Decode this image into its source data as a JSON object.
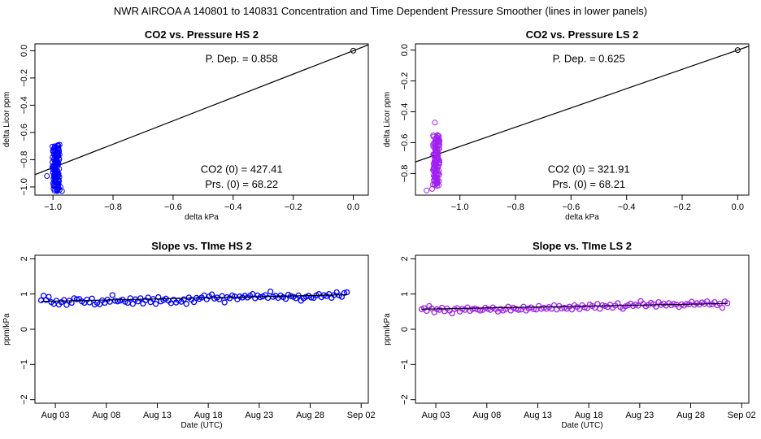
{
  "suptitle": "NWR   AIRCOA A   140801 to 140831   Concentration and Time Dependent Pressure Smoother (lines in lower panels)",
  "colors": {
    "hs": "#0000ff",
    "ls": "#a020f0",
    "line": "#000000"
  },
  "chart_data": [
    {
      "id": "p1",
      "type": "scatter",
      "title": "CO2 vs. Pressure HS 2",
      "xlabel": "delta kPa",
      "ylabel": "delta Licor ppm",
      "xlim": [
        -1.06,
        0.05
      ],
      "ylim": [
        -1.06,
        0.05
      ],
      "xticks": [
        -1.0,
        -0.8,
        -0.6,
        -0.4,
        -0.2,
        0.0
      ],
      "xtick_labels": [
        "−1.0",
        "−0.8",
        "−0.6",
        "−0.4",
        "−0.2",
        "0.0"
      ],
      "yticks": [
        0.0,
        -0.2,
        -0.4,
        -0.6,
        -0.8,
        -1.0
      ],
      "ytick_labels": [
        "0.0",
        "−0.2",
        "−0.4",
        "−0.6",
        "−0.8",
        "−1.0"
      ],
      "annotations": [
        "P. Dep. =  0.858",
        "CO2 (0) =  427.41",
        "Prs. (0) =  68.22"
      ],
      "fit_line": {
        "slope": 0.858,
        "intercept": 0.0
      },
      "cluster": {
        "x_center": -0.99,
        "x_spread": 0.012,
        "y_min": -1.03,
        "y_max": -0.69,
        "count": 120,
        "outliers": [
          [
            -1.02,
            -0.92
          ],
          [
            -0.975,
            -1.0
          ],
          [
            -0.97,
            -1.03
          ]
        ]
      },
      "origin_point": [
        0.0,
        0.0
      ]
    },
    {
      "id": "p2",
      "type": "scatter",
      "title": "CO2 vs. Pressure LS 2",
      "xlabel": "delta kPa",
      "ylabel": "delta Licor ppm",
      "xlim": [
        -1.16,
        0.04
      ],
      "ylim": [
        -0.94,
        0.04
      ],
      "xticks": [
        -1.0,
        -0.8,
        -0.6,
        -0.4,
        -0.2,
        0.0
      ],
      "xtick_labels": [
        "−1.0",
        "−0.8",
        "−0.6",
        "−0.4",
        "−0.2",
        "0.0"
      ],
      "yticks": [
        0.0,
        -0.2,
        -0.4,
        -0.6,
        -0.8
      ],
      "ytick_labels": [
        "0.0",
        "−0.2",
        "−0.4",
        "−0.6",
        "−0.8"
      ],
      "annotations": [
        "P. Dep. =  0.625",
        "CO2 (0) =  321.91",
        "Prs. (0) =  68.21"
      ],
      "fit_line": {
        "slope": 0.625,
        "intercept": 0.0
      },
      "cluster": {
        "x_center": -1.085,
        "x_spread": 0.012,
        "y_min": -0.88,
        "y_max": -0.55,
        "count": 120,
        "outliers": [
          [
            -1.12,
            -0.91
          ],
          [
            -1.09,
            -0.47
          ],
          [
            -1.1,
            -0.9
          ]
        ]
      },
      "origin_point": [
        0.0,
        0.0
      ]
    },
    {
      "id": "p3",
      "type": "scatter",
      "title": "Slope vs. TIme HS 2",
      "xlabel": "Date (UTC)",
      "ylabel": "ppm/kPa",
      "xlim": [
        0.5,
        33.2
      ],
      "ylim": [
        -2.1,
        2.1
      ],
      "xticks": [
        2.5,
        7.5,
        12.5,
        17.5,
        22.5,
        27.5,
        32.5
      ],
      "xtick_labels": [
        "Aug 03",
        "Aug 08",
        "Aug 13",
        "Aug 18",
        "Aug 23",
        "Aug 28",
        "Sep 02"
      ],
      "yticks": [
        -2,
        -1,
        0,
        1,
        2
      ],
      "ytick_labels": [
        "−2",
        "−1",
        "0",
        "1",
        "2"
      ],
      "x": [
        1.1,
        1.35,
        1.6,
        1.85,
        2.1,
        2.35,
        2.6,
        2.85,
        3.1,
        3.35,
        3.6,
        3.85,
        4.1,
        4.35,
        4.6,
        4.85,
        5.1,
        5.35,
        5.6,
        5.85,
        6.1,
        6.35,
        6.6,
        6.85,
        7.1,
        7.35,
        7.6,
        7.85,
        8.1,
        8.35,
        8.6,
        8.85,
        9.1,
        9.35,
        9.6,
        9.85,
        10.1,
        10.35,
        10.6,
        10.85,
        11.1,
        11.35,
        11.6,
        11.85,
        12.1,
        12.35,
        12.6,
        12.85,
        13.1,
        13.35,
        13.6,
        13.85,
        14.1,
        14.35,
        14.6,
        14.85,
        15.1,
        15.35,
        15.6,
        15.85,
        16.1,
        16.35,
        16.6,
        16.85,
        17.1,
        17.35,
        17.6,
        17.85,
        18.1,
        18.35,
        18.6,
        18.85,
        19.1,
        19.35,
        19.6,
        19.85,
        20.1,
        20.35,
        20.6,
        20.85,
        21.1,
        21.35,
        21.6,
        21.85,
        22.1,
        22.35,
        22.6,
        22.85,
        23.1,
        23.35,
        23.6,
        23.85,
        24.1,
        24.35,
        24.6,
        24.85,
        25.1,
        25.35,
        25.6,
        25.85,
        26.1,
        26.35,
        26.6,
        26.85,
        27.1,
        27.35,
        27.6,
        27.85,
        28.1,
        28.35,
        28.6,
        28.85,
        29.1,
        29.35,
        29.6,
        29.85,
        30.1,
        30.35,
        30.6,
        30.85,
        31.1
      ],
      "y": [
        0.82,
        0.95,
        0.83,
        0.92,
        0.77,
        0.72,
        0.81,
        0.7,
        0.77,
        0.83,
        0.69,
        0.81,
        0.75,
        0.88,
        0.85,
        0.86,
        0.79,
        0.75,
        0.84,
        0.76,
        0.87,
        0.7,
        0.75,
        0.71,
        0.82,
        0.75,
        0.84,
        0.78,
        0.97,
        0.81,
        0.79,
        0.81,
        0.84,
        0.78,
        0.75,
        0.88,
        0.72,
        0.85,
        0.79,
        0.88,
        0.73,
        0.82,
        0.9,
        0.77,
        0.86,
        0.72,
        0.91,
        0.79,
        0.83,
        0.87,
        0.81,
        0.74,
        0.84,
        0.76,
        0.82,
        0.78,
        0.85,
        0.72,
        0.9,
        0.84,
        0.77,
        0.89,
        0.86,
        0.9,
        0.96,
        0.85,
        0.93,
        0.99,
        0.87,
        0.9,
        0.85,
        0.94,
        0.76,
        0.91,
        0.88,
        0.96,
        0.93,
        0.85,
        0.93,
        0.9,
        0.95,
        0.9,
        0.95,
        1.0,
        0.88,
        0.96,
        0.91,
        0.93,
        0.97,
        0.89,
        1.07,
        0.92,
        0.95,
        0.89,
        0.96,
        0.91,
        0.86,
        0.98,
        0.94,
        0.92,
        0.88,
        0.96,
        0.81,
        0.88,
        0.92,
        0.95,
        0.9,
        0.89,
        0.96,
        1.0,
        0.91,
        0.97,
        0.94,
        1.0,
        0.89,
        0.97,
        1.05,
        0.96,
        0.92,
        1.03,
        1.05
      ],
      "smooth_line": {
        "x": [
          1.1,
          31.1
        ],
        "y": [
          0.79,
          0.98
        ]
      }
    },
    {
      "id": "p4",
      "type": "scatter",
      "title": "Slope vs. TIme LS 2",
      "xlabel": "Date (UTC)",
      "ylabel": "ppm/kPa",
      "xlim": [
        0.5,
        33.2
      ],
      "ylim": [
        -2.1,
        2.1
      ],
      "xticks": [
        2.5,
        7.5,
        12.5,
        17.5,
        22.5,
        27.5,
        32.5
      ],
      "xtick_labels": [
        "Aug 03",
        "Aug 08",
        "Aug 13",
        "Aug 18",
        "Aug 23",
        "Aug 28",
        "Sep 02"
      ],
      "yticks": [
        -2,
        -1,
        0,
        1,
        2
      ],
      "ytick_labels": [
        "−2",
        "−1",
        "0",
        "1",
        "2"
      ],
      "x": [
        1.1,
        1.35,
        1.6,
        1.85,
        2.1,
        2.35,
        2.6,
        2.85,
        3.1,
        3.35,
        3.6,
        3.85,
        4.1,
        4.35,
        4.6,
        4.85,
        5.1,
        5.35,
        5.6,
        5.85,
        6.1,
        6.35,
        6.6,
        6.85,
        7.1,
        7.35,
        7.6,
        7.85,
        8.1,
        8.35,
        8.6,
        8.85,
        9.1,
        9.35,
        9.6,
        9.85,
        10.1,
        10.35,
        10.6,
        10.85,
        11.1,
        11.35,
        11.6,
        11.85,
        12.1,
        12.35,
        12.6,
        12.85,
        13.1,
        13.35,
        13.6,
        13.85,
        14.1,
        14.35,
        14.6,
        14.85,
        15.1,
        15.35,
        15.6,
        15.85,
        16.1,
        16.35,
        16.6,
        16.85,
        17.1,
        17.35,
        17.6,
        17.85,
        18.1,
        18.35,
        18.6,
        18.85,
        19.1,
        19.35,
        19.6,
        19.85,
        20.1,
        20.35,
        20.6,
        20.85,
        21.1,
        21.35,
        21.6,
        21.85,
        22.1,
        22.35,
        22.6,
        22.85,
        23.1,
        23.35,
        23.6,
        23.85,
        24.1,
        24.35,
        24.6,
        24.85,
        25.1,
        25.35,
        25.6,
        25.85,
        26.1,
        26.35,
        26.6,
        26.85,
        27.1,
        27.35,
        27.6,
        27.85,
        28.1,
        28.35,
        28.6,
        28.85,
        29.1,
        29.35,
        29.6,
        29.85,
        30.1,
        30.35,
        30.6,
        30.85,
        31.1
      ],
      "y": [
        0.57,
        0.6,
        0.52,
        0.66,
        0.59,
        0.48,
        0.57,
        0.55,
        0.61,
        0.51,
        0.59,
        0.53,
        0.45,
        0.57,
        0.6,
        0.5,
        0.58,
        0.55,
        0.62,
        0.52,
        0.57,
        0.59,
        0.56,
        0.53,
        0.55,
        0.61,
        0.58,
        0.55,
        0.62,
        0.57,
        0.5,
        0.58,
        0.53,
        0.57,
        0.64,
        0.53,
        0.61,
        0.58,
        0.55,
        0.56,
        0.64,
        0.53,
        0.59,
        0.62,
        0.57,
        0.56,
        0.66,
        0.58,
        0.61,
        0.58,
        0.63,
        0.58,
        0.68,
        0.56,
        0.66,
        0.59,
        0.61,
        0.58,
        0.64,
        0.56,
        0.68,
        0.63,
        0.57,
        0.68,
        0.62,
        0.6,
        0.7,
        0.66,
        0.61,
        0.72,
        0.58,
        0.68,
        0.66,
        0.63,
        0.7,
        0.61,
        0.67,
        0.74,
        0.63,
        0.58,
        0.65,
        0.68,
        0.73,
        0.66,
        0.7,
        0.67,
        0.8,
        0.72,
        0.65,
        0.69,
        0.75,
        0.71,
        0.64,
        0.77,
        0.69,
        0.73,
        0.67,
        0.74,
        0.68,
        0.72,
        0.7,
        0.63,
        0.71,
        0.67,
        0.72,
        0.71,
        0.78,
        0.69,
        0.74,
        0.7,
        0.76,
        0.72,
        0.79,
        0.7,
        0.71,
        0.77,
        0.68,
        0.73,
        0.61,
        0.79,
        0.74
      ],
      "smooth_line": {
        "x": [
          1.1,
          31.1
        ],
        "y": [
          0.57,
          0.73
        ]
      }
    }
  ]
}
